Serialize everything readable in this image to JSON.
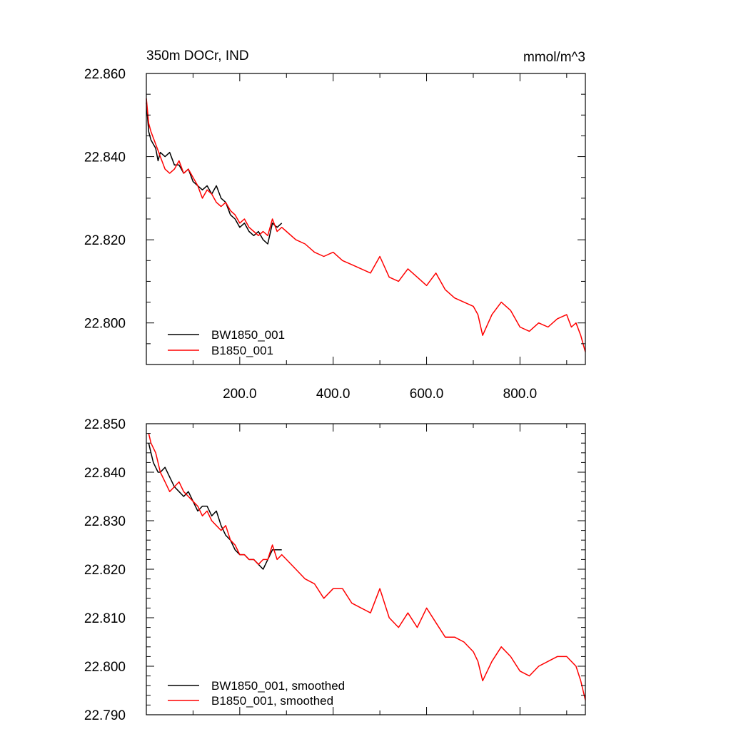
{
  "chart_data": [
    {
      "type": "line",
      "title": "350m DOCr, IND",
      "units": "mmol/m^3",
      "xlim": [
        0,
        940
      ],
      "ylim": [
        22.79,
        22.86
      ],
      "x_ticks": [
        200,
        400,
        600,
        800
      ],
      "x_tick_labels": [
        "200.0",
        "400.0",
        "600.0",
        "800.0"
      ],
      "y_ticks": [
        22.8,
        22.82,
        22.84,
        22.86
      ],
      "y_tick_labels": [
        "22.800",
        "22.820",
        "22.840",
        "22.860"
      ],
      "legend": "bottom-left",
      "grid": false,
      "series": [
        {
          "name": "BW1850_001",
          "color": "#000000",
          "x": [
            0,
            5,
            10,
            15,
            20,
            25,
            30,
            40,
            50,
            60,
            70,
            80,
            90,
            100,
            110,
            120,
            130,
            140,
            150,
            160,
            170,
            180,
            190,
            200,
            210,
            220,
            230,
            240,
            250,
            260,
            270,
            280,
            290
          ],
          "y": [
            22.853,
            22.846,
            22.844,
            22.843,
            22.842,
            22.839,
            22.841,
            22.84,
            22.841,
            22.838,
            22.838,
            22.836,
            22.837,
            22.834,
            22.833,
            22.832,
            22.833,
            22.831,
            22.833,
            22.83,
            22.829,
            22.826,
            22.825,
            22.823,
            22.824,
            22.822,
            22.821,
            22.822,
            22.82,
            22.819,
            22.824,
            22.823,
            22.824
          ]
        },
        {
          "name": "B1850_001",
          "color": "#ff0000",
          "x": [
            0,
            5,
            10,
            20,
            30,
            40,
            50,
            60,
            70,
            80,
            90,
            100,
            110,
            120,
            130,
            140,
            150,
            160,
            170,
            180,
            190,
            200,
            210,
            220,
            230,
            240,
            250,
            260,
            270,
            280,
            290,
            300,
            320,
            340,
            360,
            380,
            400,
            420,
            440,
            460,
            480,
            500,
            520,
            540,
            560,
            580,
            600,
            620,
            640,
            660,
            680,
            700,
            710,
            720,
            740,
            760,
            780,
            800,
            820,
            840,
            860,
            880,
            900,
            910,
            920,
            930,
            940
          ],
          "y": [
            22.854,
            22.848,
            22.846,
            22.843,
            22.84,
            22.837,
            22.836,
            22.837,
            22.839,
            22.836,
            22.837,
            22.835,
            22.833,
            22.83,
            22.832,
            22.831,
            22.829,
            22.828,
            22.829,
            22.827,
            22.826,
            22.824,
            22.825,
            22.823,
            22.822,
            22.821,
            22.822,
            22.821,
            22.825,
            22.822,
            22.823,
            22.822,
            22.82,
            22.819,
            22.817,
            22.816,
            22.817,
            22.815,
            22.814,
            22.813,
            22.812,
            22.816,
            22.811,
            22.81,
            22.813,
            22.811,
            22.809,
            22.812,
            22.808,
            22.806,
            22.805,
            22.804,
            22.802,
            22.797,
            22.802,
            22.805,
            22.803,
            22.799,
            22.798,
            22.8,
            22.799,
            22.801,
            22.802,
            22.799,
            22.8,
            22.797,
            22.793
          ]
        }
      ]
    },
    {
      "type": "line",
      "xlim": [
        0,
        940
      ],
      "ylim": [
        22.79,
        22.85
      ],
      "y_ticks": [
        22.79,
        22.8,
        22.81,
        22.82,
        22.83,
        22.84,
        22.85
      ],
      "y_tick_labels": [
        "22.790",
        "22.800",
        "22.810",
        "22.820",
        "22.830",
        "22.840",
        "22.850"
      ],
      "legend": "bottom-left",
      "grid": false,
      "series": [
        {
          "name": "BW1850_001, smoothed",
          "color": "#000000",
          "x": [
            5,
            10,
            15,
            20,
            25,
            30,
            40,
            50,
            60,
            70,
            80,
            90,
            100,
            110,
            120,
            130,
            140,
            150,
            160,
            170,
            180,
            190,
            200,
            210,
            220,
            230,
            240,
            250,
            260,
            270,
            280,
            290
          ],
          "y": [
            22.846,
            22.844,
            22.842,
            22.841,
            22.84,
            22.84,
            22.841,
            22.839,
            22.837,
            22.836,
            22.835,
            22.836,
            22.834,
            22.832,
            22.833,
            22.833,
            22.831,
            22.832,
            22.829,
            22.827,
            22.826,
            22.824,
            22.823,
            22.823,
            22.822,
            22.822,
            22.821,
            22.82,
            22.822,
            22.824,
            22.824,
            22.824
          ]
        },
        {
          "name": "B1850_001, smoothed",
          "color": "#ff0000",
          "x": [
            5,
            10,
            20,
            30,
            40,
            50,
            60,
            70,
            80,
            90,
            100,
            110,
            120,
            130,
            140,
            150,
            160,
            170,
            180,
            190,
            200,
            210,
            220,
            230,
            240,
            250,
            260,
            270,
            280,
            290,
            300,
            320,
            340,
            360,
            380,
            400,
            420,
            440,
            460,
            480,
            500,
            520,
            540,
            560,
            580,
            600,
            620,
            640,
            660,
            680,
            700,
            710,
            720,
            740,
            760,
            780,
            800,
            820,
            840,
            860,
            880,
            900,
            920,
            930,
            940
          ],
          "y": [
            22.848,
            22.846,
            22.844,
            22.84,
            22.838,
            22.836,
            22.837,
            22.838,
            22.836,
            22.835,
            22.834,
            22.833,
            22.831,
            22.832,
            22.83,
            22.829,
            22.828,
            22.829,
            22.826,
            22.825,
            22.823,
            22.823,
            22.822,
            22.822,
            22.821,
            22.822,
            22.822,
            22.825,
            22.822,
            22.823,
            22.822,
            22.82,
            22.818,
            22.817,
            22.814,
            22.816,
            22.816,
            22.813,
            22.812,
            22.811,
            22.816,
            22.81,
            22.808,
            22.811,
            22.808,
            22.812,
            22.809,
            22.806,
            22.806,
            22.805,
            22.803,
            22.801,
            22.797,
            22.801,
            22.804,
            22.802,
            22.799,
            22.798,
            22.8,
            22.801,
            22.802,
            22.802,
            22.8,
            22.797,
            22.793
          ]
        }
      ]
    }
  ]
}
